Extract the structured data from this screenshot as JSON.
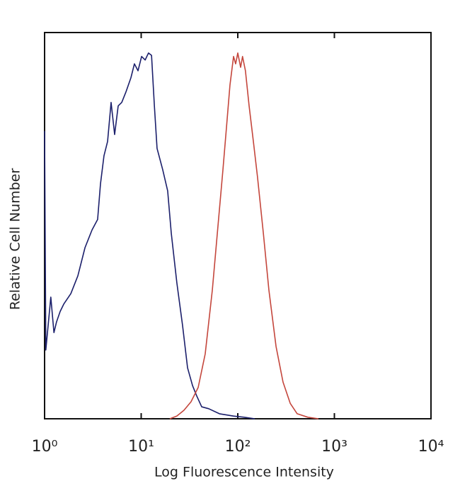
{
  "chart_data": {
    "type": "line",
    "x_label": "Log Fluorescence Intensity",
    "y_label": "Relative Cell Number",
    "xscale": "log",
    "xlim": [
      1,
      10000
    ],
    "ylim": [
      0,
      100
    ],
    "xticks": [
      {
        "value": 1,
        "label": "10⁰"
      },
      {
        "value": 10,
        "label": "10¹"
      },
      {
        "value": 100,
        "label": "10²"
      },
      {
        "value": 1000,
        "label": "10³"
      },
      {
        "value": 10000,
        "label": "10⁴"
      }
    ],
    "series": [
      {
        "color": "#1b1f6b",
        "x": [
          1,
          1.03,
          1.16,
          1.25,
          1.33,
          1.45,
          1.58,
          1.87,
          2.21,
          2.62,
          3.1,
          3.54,
          3.79,
          4.12,
          4.49,
          4.88,
          5.31,
          5.78,
          6.29,
          6.95,
          7.83,
          8.51,
          9.27,
          10.1,
          11.0,
          11.9,
          12.8,
          13.7,
          14.6,
          16.7,
          18.8,
          20.5,
          23.4,
          26.8,
          30.2,
          34.0,
          37.6,
          42.3,
          50.1,
          64.6,
          90.4,
          116,
          150
        ],
        "values": [
          74.5,
          17.8,
          31.5,
          22.3,
          25.1,
          27.8,
          29.7,
          32.4,
          37.0,
          44.3,
          48.9,
          51.6,
          60.8,
          68.1,
          71.8,
          81.9,
          73.6,
          81.0,
          81.9,
          84.6,
          88.3,
          91.9,
          90.1,
          93.8,
          92.9,
          94.7,
          94.1,
          81.0,
          70.0,
          64.5,
          59.0,
          48.0,
          35.2,
          24.2,
          13.2,
          8.6,
          5.9,
          3.1,
          2.6,
          1.3,
          0.7,
          0.4,
          0
        ]
      },
      {
        "color": "#c4463c",
        "x": [
          19.8,
          23.4,
          27.7,
          32.8,
          38.9,
          46.0,
          54.5,
          62.3,
          70.2,
          76.4,
          83.0,
          90.4,
          95.0,
          100,
          107,
          112,
          120,
          131,
          145,
          160,
          184,
          210,
          249,
          294,
          349,
          412,
          531,
          684
        ],
        "values": [
          0,
          0.7,
          2.2,
          4.4,
          8.1,
          16.8,
          33.3,
          49.8,
          64.5,
          75.5,
          86.4,
          93.8,
          91.9,
          94.7,
          91.0,
          93.8,
          90.1,
          81.0,
          71.8,
          62.6,
          48.0,
          33.3,
          18.7,
          9.5,
          4.0,
          1.3,
          0.4,
          0
        ]
      }
    ]
  }
}
